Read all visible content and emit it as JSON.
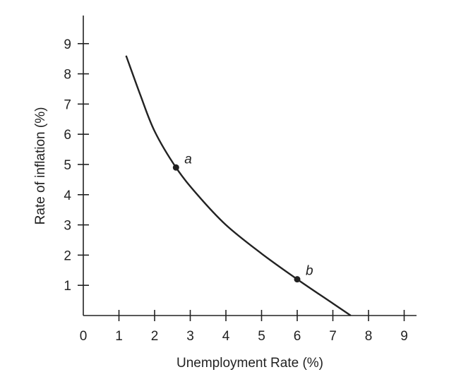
{
  "chart_data": {
    "type": "line",
    "title": "",
    "xlabel": "Unemployment Rate (%)",
    "ylabel": "Rate of inflation (%)",
    "xlim": [
      0,
      9
    ],
    "ylim": [
      0,
      9
    ],
    "x_ticks": [
      "0",
      "1",
      "2",
      "3",
      "4",
      "5",
      "6",
      "7",
      "8",
      "9"
    ],
    "y_ticks": [
      "1",
      "2",
      "3",
      "4",
      "5",
      "6",
      "7",
      "8",
      "9"
    ],
    "grid": false,
    "series": [
      {
        "x": [
          1.2,
          1.6,
          2.0,
          2.6,
          3.2,
          4.0,
          5.0,
          6.0,
          7.0,
          7.5
        ],
        "y": [
          8.6,
          7.3,
          6.1,
          4.9,
          4.0,
          3.0,
          2.05,
          1.2,
          0.4,
          0.0
        ]
      }
    ],
    "points": [
      {
        "label": "a",
        "x": 2.6,
        "y": 4.9
      },
      {
        "label": "b",
        "x": 6.0,
        "y": 1.2
      }
    ]
  }
}
